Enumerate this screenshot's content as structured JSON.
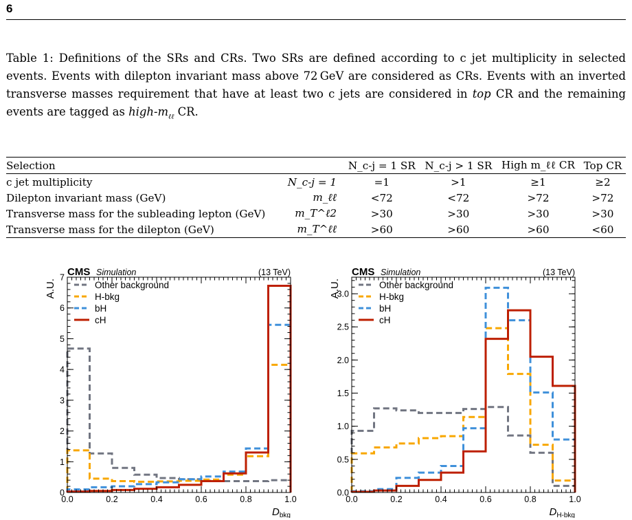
{
  "page_number": "6",
  "caption": {
    "label": "Table 1:",
    "part1": "Definitions of the SRs and CRs. Two SRs are defined according to c jet multiplicity in selected events. Events with dilepton invariant mass above 72 GeV are considered as CRs. Events with an inverted transverse masses requirement that have at least two c jets are considered in ",
    "top": "top",
    "part2": " CR and the remaining events are tagged as ",
    "high": "high-m",
    "high_sub": "ℓℓ",
    "part3": " CR."
  },
  "table": {
    "headers": [
      "Selection",
      "",
      "N_c-j = 1 SR",
      "N_c-j > 1 SR",
      "High m_ℓℓ CR",
      "Top CR"
    ],
    "rows": [
      {
        "selection": "c jet multiplicity",
        "symbol": "N_c-j = 1",
        "cells": [
          "=1",
          ">1",
          "≥1",
          "≥2"
        ]
      },
      {
        "selection": "Dilepton invariant mass (GeV)",
        "symbol": "m_ℓℓ",
        "cells": [
          "<72",
          "<72",
          ">72",
          ">72"
        ]
      },
      {
        "selection": "Transverse mass for the subleading lepton (GeV)",
        "symbol": "m_T^ℓ2",
        "cells": [
          ">30",
          ">30",
          ">30",
          ">30"
        ]
      },
      {
        "selection": "Transverse mass for the dilepton (GeV)",
        "symbol": "m_T^ℓℓ",
        "cells": [
          ">60",
          ">60",
          ">60",
          "<60"
        ]
      }
    ]
  },
  "chart_data": [
    {
      "type": "line",
      "title": "CMS",
      "subtitle": "Simulation",
      "energy": "(13 TeV)",
      "xlabel": "D",
      "xlabel_sub": "bkg",
      "ylabel": "A.U.",
      "xlim": [
        0,
        1
      ],
      "ylim": [
        0,
        7
      ],
      "xticks": [
        "0.0",
        "0.2",
        "0.4",
        "0.6",
        "0.8",
        "1.0"
      ],
      "yticks": [
        "0",
        "1",
        "2",
        "3",
        "4",
        "5",
        "6",
        "7"
      ],
      "yticks_values": [
        0,
        1,
        2,
        3,
        4,
        5,
        6,
        7
      ],
      "legend_position": "top-left",
      "bin_edges": [
        0,
        0.1,
        0.2,
        0.3,
        0.4,
        0.5,
        0.6,
        0.7,
        0.8,
        0.9,
        1.0
      ],
      "series": [
        {
          "name": "Other background",
          "color": "#717581",
          "style": "dashed",
          "values": [
            4.68,
            1.27,
            0.8,
            0.58,
            0.47,
            0.43,
            0.38,
            0.37,
            0.37,
            0.4
          ]
        },
        {
          "name": "H-bkg",
          "color": "#f8a700",
          "style": "dashed",
          "values": [
            1.37,
            0.45,
            0.37,
            0.35,
            0.36,
            0.38,
            0.42,
            0.58,
            1.18,
            4.15
          ]
        },
        {
          "name": "bH",
          "color": "#3f90da",
          "style": "dashed",
          "values": [
            0.1,
            0.17,
            0.2,
            0.27,
            0.33,
            0.43,
            0.52,
            0.68,
            1.43,
            5.45
          ]
        },
        {
          "name": "cH",
          "color": "#bd1f01",
          "style": "solid",
          "values": [
            0.03,
            0.05,
            0.08,
            0.12,
            0.17,
            0.25,
            0.37,
            0.62,
            1.3,
            6.72
          ]
        }
      ]
    },
    {
      "type": "line",
      "title": "CMS",
      "subtitle": "Simulation",
      "energy": "(13 TeV)",
      "xlabel": "D",
      "xlabel_sub": "H-bkg",
      "ylabel": "A.U.",
      "xlim": [
        0,
        1
      ],
      "ylim": [
        0,
        3.25
      ],
      "xticks": [
        "0.0",
        "0.2",
        "0.4",
        "0.6",
        "0.8",
        "1.0"
      ],
      "yticks": [
        "0.0",
        "0.5",
        "1.0",
        "1.5",
        "2.0",
        "2.5",
        "3.0"
      ],
      "yticks_values": [
        0,
        0.5,
        1.0,
        1.5,
        2.0,
        2.5,
        3.0
      ],
      "legend_position": "top-left",
      "bin_edges": [
        0,
        0.1,
        0.2,
        0.3,
        0.4,
        0.5,
        0.6,
        0.7,
        0.8,
        0.9,
        1.0
      ],
      "series": [
        {
          "name": "Other background",
          "color": "#717581",
          "style": "dashed",
          "values": [
            0.93,
            1.27,
            1.24,
            1.2,
            1.2,
            1.26,
            1.29,
            0.86,
            0.6,
            0.1
          ]
        },
        {
          "name": "H-bkg",
          "color": "#f8a700",
          "style": "dashed",
          "values": [
            0.59,
            0.68,
            0.74,
            0.82,
            0.85,
            1.14,
            2.48,
            1.79,
            0.72,
            0.18
          ]
        },
        {
          "name": "bH",
          "color": "#3f90da",
          "style": "dashed",
          "values": [
            0.02,
            0.05,
            0.22,
            0.3,
            0.4,
            0.97,
            3.09,
            2.6,
            1.51,
            0.8
          ]
        },
        {
          "name": "cH",
          "color": "#bd1f01",
          "style": "solid",
          "values": [
            0.01,
            0.03,
            0.1,
            0.19,
            0.3,
            0.62,
            2.32,
            2.75,
            2.05,
            1.61
          ]
        }
      ]
    }
  ]
}
